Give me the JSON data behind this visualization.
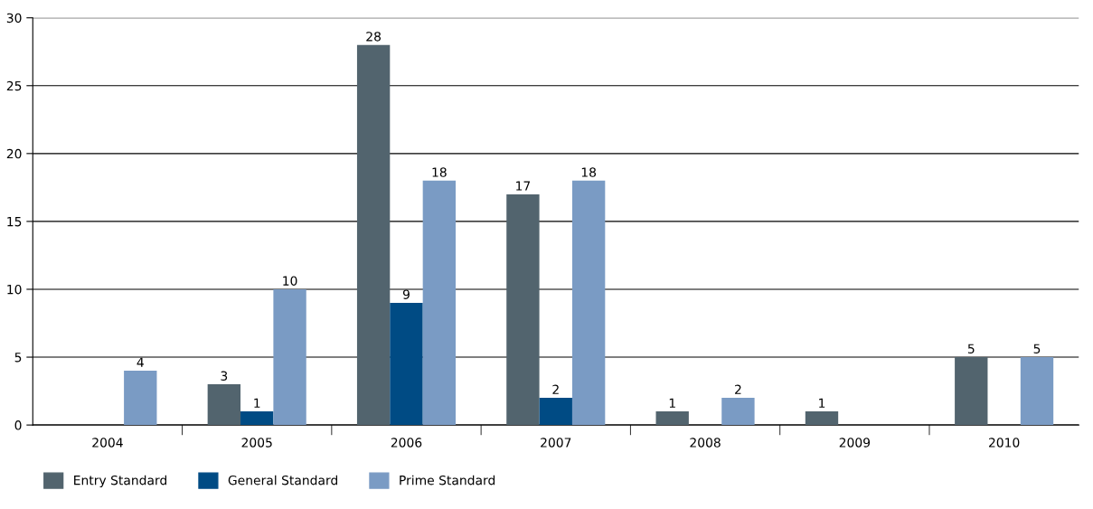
{
  "chart_data": {
    "type": "bar",
    "categories": [
      "2004",
      "2005",
      "2006",
      "2007",
      "2008",
      "2009",
      "2010"
    ],
    "series": [
      {
        "name": "Entry Standard",
        "color": "#52646e",
        "values": [
          null,
          3,
          28,
          17,
          1,
          1,
          5
        ]
      },
      {
        "name": "General Standard",
        "color": "#004b84",
        "values": [
          null,
          1,
          9,
          2,
          null,
          null,
          null
        ]
      },
      {
        "name": "Prime Standard",
        "color": "#7a9bc4",
        "values": [
          4,
          10,
          18,
          18,
          2,
          null,
          5
        ]
      }
    ],
    "ylim": [
      0,
      30
    ],
    "yticks": [
      0,
      5,
      10,
      15,
      20,
      25,
      30
    ],
    "grid": "y",
    "legend": "bottom",
    "data_labels": true
  }
}
